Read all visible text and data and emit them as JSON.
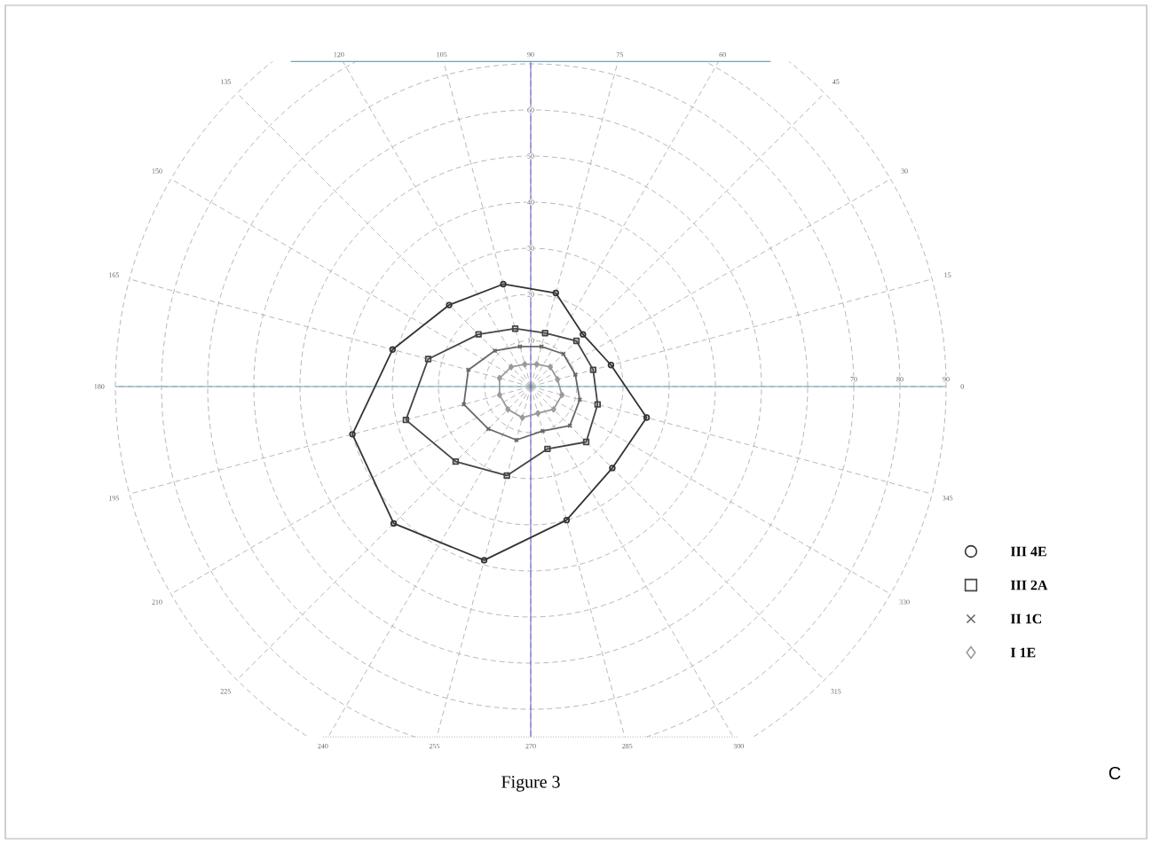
{
  "chart_data": {
    "type": "radar",
    "categories": [
      "90",
      "75",
      "60",
      "45",
      "30",
      "15",
      "0",
      "345",
      "330",
      "315",
      "300",
      "285",
      "270",
      "255",
      "240",
      "225",
      "210",
      "195",
      "180",
      "165",
      "150",
      "135",
      "120",
      "105"
    ],
    "series": [
      {
        "name": "III 4E",
        "color": "#333333",
        "marker": "circle",
        "values": [
          null,
          21,
          null,
          16,
          null,
          18,
          null,
          26,
          null,
          25,
          null,
          30,
          null,
          39,
          null,
          42,
          null,
          40,
          null,
          31,
          null,
          25,
          null,
          23
        ]
      },
      {
        "name": "III 2A",
        "color": "#444444",
        "marker": "square",
        "values": [
          null,
          12,
          null,
          14,
          null,
          14,
          null,
          15,
          null,
          17,
          null,
          14,
          null,
          20,
          null,
          23,
          null,
          28,
          null,
          23,
          null,
          16,
          null,
          13
        ]
      },
      {
        "name": "II 1C",
        "color": "#666666",
        "marker": "cross",
        "values": [
          null,
          9,
          null,
          10,
          null,
          10,
          null,
          11,
          null,
          12,
          null,
          10,
          null,
          12,
          null,
          13,
          null,
          15,
          null,
          14,
          null,
          11,
          null,
          9
        ]
      },
      {
        "name": "I 1E",
        "color": "#999999",
        "marker": "diamond",
        "values": [
          null,
          5,
          null,
          6,
          null,
          6,
          null,
          7,
          null,
          7,
          null,
          6,
          null,
          7,
          null,
          7,
          null,
          7,
          null,
          7,
          null,
          6,
          null,
          5
        ]
      }
    ],
    "ylim": [
      0,
      90
    ],
    "yticks": [
      10,
      20,
      30,
      40,
      50,
      60,
      70,
      80,
      90
    ],
    "grid": true,
    "legend": "bottom right",
    "annotations": [
      "Figure 3",
      "C"
    ]
  }
}
